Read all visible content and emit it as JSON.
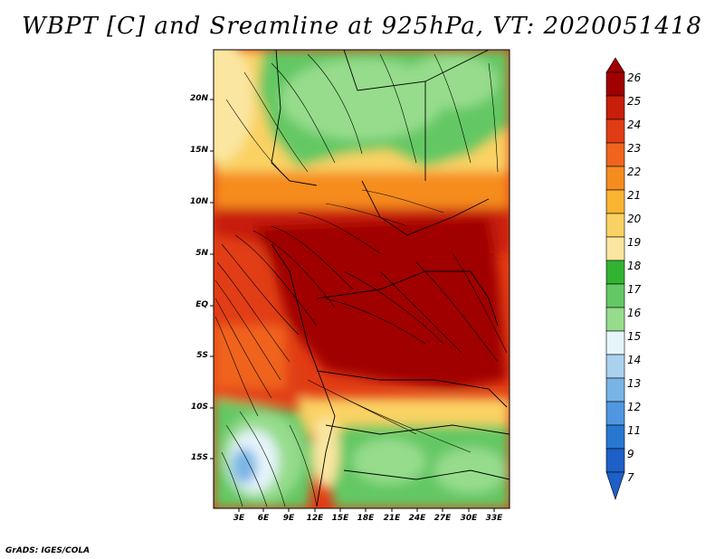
{
  "title": "WBPT [C] and Sreamline at 925hPa, VT: 2020051418",
  "footer": "GrADS: IGES/COLA",
  "map": {
    "variable": "Wet-bulb potential temperature",
    "level": "925hPa",
    "lat_labels": [
      "20N",
      "15N",
      "10N",
      "5N",
      "EQ",
      "5S",
      "10S",
      "15S"
    ],
    "lon_labels": [
      "3E",
      "6E",
      "9E",
      "12E",
      "15E",
      "18E",
      "21E",
      "24E",
      "27E",
      "30E",
      "33E"
    ]
  },
  "colorbar": {
    "labels": [
      "26",
      "25",
      "24",
      "23",
      "22",
      "21",
      "20",
      "19",
      "18",
      "17",
      "16",
      "15",
      "14",
      "13",
      "12",
      "11",
      "9",
      "7"
    ],
    "colors": [
      "#a00000",
      "#c81e0a",
      "#e13c14",
      "#f0641e",
      "#f58c1e",
      "#fab432",
      "#fad264",
      "#fae6a0",
      "#32b432",
      "#64c864",
      "#96dc8c",
      "#e6f5fa",
      "#aad2f0",
      "#78b4e6",
      "#5096e1",
      "#2878d2",
      "#1e5fc8"
    ]
  }
}
